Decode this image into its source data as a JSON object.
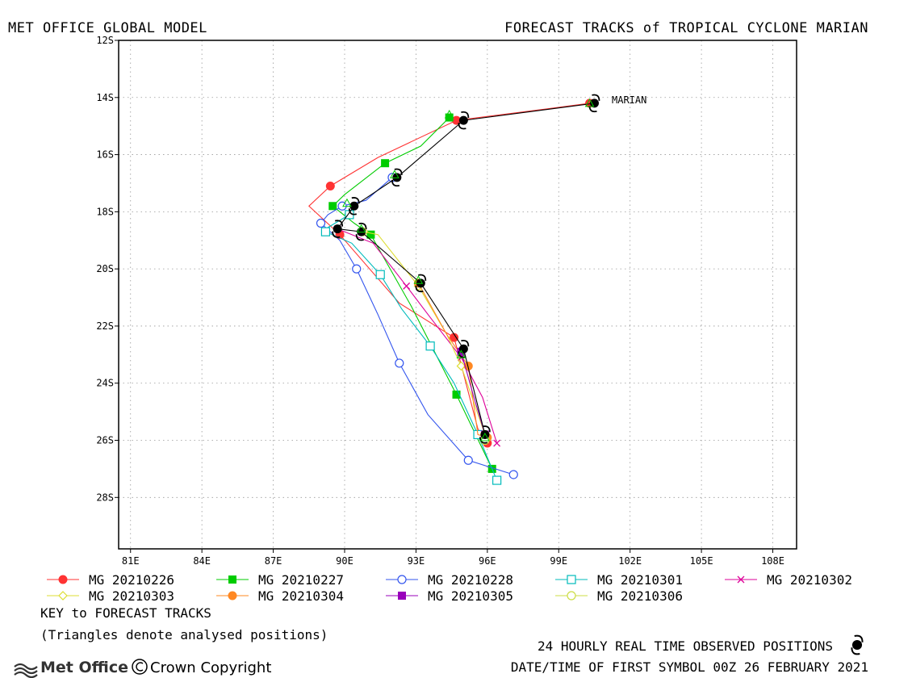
{
  "header": {
    "left_title": "MET OFFICE GLOBAL MODEL",
    "right_title": "FORECAST TRACKS of TROPICAL CYCLONE MARIAN"
  },
  "chart_data": {
    "type": "line",
    "plot_kind": "map-track",
    "xlim": [
      80.5,
      109
    ],
    "ylim": [
      -29.8,
      -12
    ],
    "x_ticks": [
      81,
      84,
      87,
      90,
      93,
      96,
      99,
      102,
      105,
      108
    ],
    "x_tick_labels": [
      "81E",
      "84E",
      "87E",
      "90E",
      "93E",
      "96E",
      "99E",
      "102E",
      "105E",
      "108E"
    ],
    "y_ticks": [
      -12,
      -14,
      -16,
      -18,
      -20,
      -22,
      -24,
      -26,
      -28
    ],
    "y_tick_labels": [
      "12S",
      "14S",
      "16S",
      "18S",
      "20S",
      "22S",
      "24S",
      "26S",
      "28S"
    ],
    "grid": true,
    "storm_label": "MARIAN",
    "observed_track": [
      [
        100.5,
        -14.2
      ],
      [
        95.0,
        -14.8
      ],
      [
        92.2,
        -16.8
      ],
      [
        90.4,
        -17.8
      ],
      [
        89.7,
        -18.6
      ],
      [
        90.7,
        -18.7
      ],
      [
        93.2,
        -20.5
      ],
      [
        95.0,
        -22.8
      ],
      [
        95.9,
        -25.8
      ]
    ],
    "series": [
      {
        "name": "MG 20210226",
        "color": "#ff3333",
        "marker": "filled-circle",
        "points": [
          [
            100.3,
            -14.2
          ],
          [
            98.5,
            -14.4
          ],
          [
            94.7,
            -14.8
          ],
          [
            91.4,
            -16.1
          ],
          [
            89.4,
            -17.1
          ],
          [
            88.5,
            -17.8
          ],
          [
            89.8,
            -18.8
          ],
          [
            92.3,
            -21.2
          ],
          [
            94.6,
            -22.4
          ],
          [
            95.6,
            -25.6
          ],
          [
            96.0,
            -26.1
          ]
        ]
      },
      {
        "name": "MG 20210227",
        "color": "#00cc00",
        "marker": "filled-square",
        "points": [
          [
            94.4,
            -14.7
          ],
          [
            93.2,
            -15.7
          ],
          [
            91.7,
            -16.3
          ],
          [
            90.0,
            -17.4
          ],
          [
            89.5,
            -17.8
          ],
          [
            90.4,
            -18.4
          ],
          [
            91.1,
            -18.8
          ],
          [
            92.8,
            -21.3
          ],
          [
            94.7,
            -24.4
          ],
          [
            96.2,
            -27.0
          ]
        ]
      },
      {
        "name": "MG 20210228",
        "color": "#3355ee",
        "marker": "open-circle",
        "points": [
          [
            92.0,
            -16.8
          ],
          [
            90.9,
            -17.6
          ],
          [
            89.9,
            -17.8
          ],
          [
            89.3,
            -18.1
          ],
          [
            89.0,
            -18.4
          ],
          [
            89.8,
            -19.0
          ],
          [
            90.5,
            -20.0
          ],
          [
            91.4,
            -21.6
          ],
          [
            92.3,
            -23.3
          ],
          [
            93.5,
            -25.1
          ],
          [
            95.2,
            -26.7
          ],
          [
            97.1,
            -27.2
          ]
        ]
      },
      {
        "name": "MG 20210301",
        "color": "#00bbbb",
        "marker": "open-square",
        "points": [
          [
            90.2,
            -18.1
          ],
          [
            89.2,
            -18.6
          ],
          [
            89.2,
            -18.7
          ],
          [
            90.3,
            -19.1
          ],
          [
            91.5,
            -20.2
          ],
          [
            92.4,
            -21.4
          ],
          [
            93.6,
            -22.7
          ],
          [
            94.6,
            -24.0
          ],
          [
            95.6,
            -25.8
          ],
          [
            96.4,
            -27.4
          ]
        ]
      },
      {
        "name": "MG 20210302",
        "color": "#dd0099",
        "marker": "cross",
        "points": [
          [
            89.7,
            -18.6
          ],
          [
            91.2,
            -19.1
          ],
          [
            92.6,
            -20.6
          ],
          [
            93.6,
            -21.7
          ],
          [
            94.9,
            -23.1
          ],
          [
            95.8,
            -24.5
          ],
          [
            96.4,
            -26.1
          ]
        ]
      },
      {
        "name": "MG 20210303",
        "color": "#dddd33",
        "marker": "open-diamond",
        "points": [
          [
            90.8,
            -18.7
          ],
          [
            91.4,
            -18.8
          ],
          [
            93.1,
            -20.6
          ],
          [
            94.3,
            -22.3
          ],
          [
            94.9,
            -23.4
          ],
          [
            95.4,
            -24.6
          ],
          [
            95.9,
            -25.8
          ]
        ]
      },
      {
        "name": "MG 20210304",
        "color": "#ff8822",
        "marker": "filled-circle",
        "points": [
          [
            93.1,
            -20.5
          ],
          [
            94.3,
            -22.3
          ],
          [
            95.2,
            -23.4
          ],
          [
            95.6,
            -25.8
          ],
          [
            96.0,
            -25.9
          ]
        ]
      },
      {
        "name": "MG 20210305",
        "color": "#9900bb",
        "marker": "filled-square",
        "points": [
          [
            94.9,
            -22.9
          ],
          [
            95.4,
            -24.4
          ],
          [
            95.9,
            -25.8
          ]
        ]
      },
      {
        "name": "MG 20210306",
        "color": "#ccdd44",
        "marker": "open-circle",
        "points": [
          [
            95.9,
            -25.8
          ],
          [
            95.9,
            -26.0
          ]
        ]
      }
    ],
    "analysed_triangles": [
      [
        100.3,
        -14.2
      ],
      [
        94.4,
        -14.6
      ],
      [
        92.1,
        -16.7
      ],
      [
        90.1,
        -17.7
      ],
      [
        90.7,
        -18.6
      ],
      [
        93.1,
        -20.4
      ],
      [
        94.9,
        -23.0
      ],
      [
        95.9,
        -25.9
      ]
    ]
  },
  "legend": {
    "key_label": "KEY to FORECAST TRACKS",
    "note": "(Triangles denote analysed positions)"
  },
  "footer": {
    "observed_label": "24 HOURLY REAL TIME OBSERVED POSITIONS",
    "datetime": "DATE/TIME OF FIRST SYMBOL 00Z 26 FEBRUARY 2021",
    "brand": "Met Office",
    "copyright": "Crown Copyright"
  },
  "colors": {
    "frame": "#000000",
    "grid": "#999999",
    "observed": "#000000"
  }
}
